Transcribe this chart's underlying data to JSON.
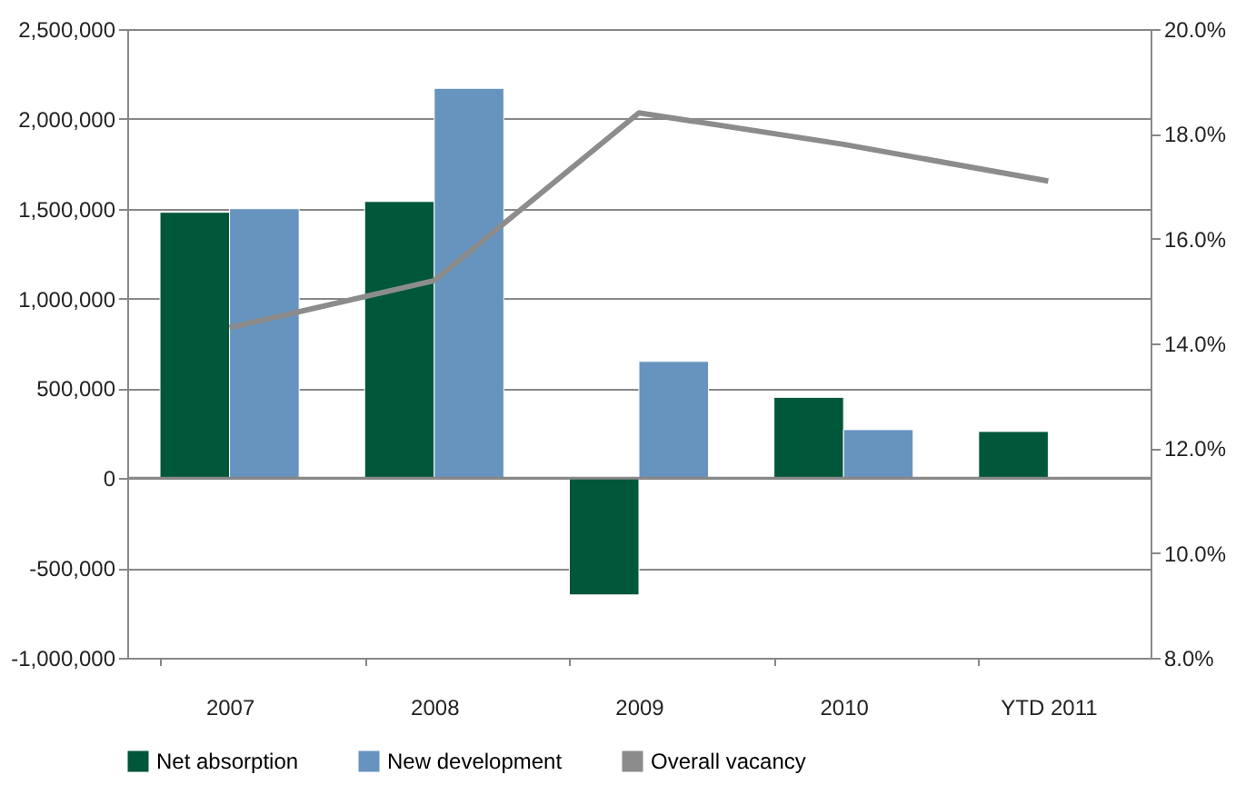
{
  "chart_data": {
    "type": "bar",
    "categories": [
      "2007",
      "2008",
      "2009",
      "2010",
      "YTD 2011"
    ],
    "series": [
      {
        "name": "Net absorption",
        "color": "#00573a",
        "values": [
          1480000,
          1540000,
          -650000,
          450000,
          260000
        ]
      },
      {
        "name": "New development",
        "color": "#6794bf",
        "values": [
          1500000,
          2170000,
          650000,
          270000,
          null
        ]
      },
      {
        "name": "Overall vacancy",
        "type": "line",
        "axis": "y2",
        "color": "#8c8c8c",
        "values": [
          14.3,
          15.2,
          18.4,
          17.8,
          17.1
        ]
      }
    ],
    "ylim": [
      -1000000,
      2500000
    ],
    "yticks": [
      {
        "value": -1000000,
        "label": "-1,000,000"
      },
      {
        "value": -500000,
        "label": "-500,000"
      },
      0,
      {
        "value": 500000,
        "label": "500,000"
      },
      {
        "value": 1000000,
        "label": "1,000,000"
      },
      {
        "value": 1500000,
        "label": "1,500,000"
      },
      {
        "value": 2000000,
        "label": "2,000,000"
      },
      {
        "value": 2500000,
        "label": "2,500,000"
      }
    ],
    "y2lim": [
      8,
      20
    ],
    "y2ticks": [
      {
        "value": 8,
        "label": "8.0%"
      },
      {
        "value": 10,
        "label": "10.0%"
      },
      {
        "value": 12,
        "label": "12.0%"
      },
      {
        "value": 14,
        "label": "14.0%"
      },
      {
        "value": 16,
        "label": "16.0%"
      },
      {
        "value": 18,
        "label": "18.0%"
      },
      {
        "value": 20,
        "label": "20.0%"
      }
    ],
    "grid": "y",
    "legend": "bottom"
  }
}
